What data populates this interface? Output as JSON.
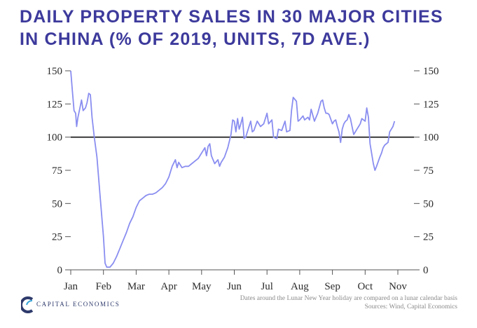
{
  "chart_data": {
    "type": "line",
    "title": "DAILY PROPERTY SALES IN 30 MAJOR CITIES IN CHINA (% OF 2019, UNITS, 7D AVE.)",
    "xlabel": "",
    "ylabel": "",
    "ylim": [
      0,
      150
    ],
    "yticks": [
      0,
      25,
      50,
      75,
      100,
      125,
      150
    ],
    "ytick_labels": [
      "0",
      "25",
      "50",
      "75",
      "100",
      "125",
      "150"
    ],
    "x_tick_labels": [
      "Jan",
      "Feb",
      "Mar",
      "Apr",
      "May",
      "Jun",
      "Jul",
      "Aug",
      "Sep",
      "Oct",
      "Nov"
    ],
    "reference_line": 100,
    "grid": false,
    "legend": "none",
    "series": [
      {
        "name": "Daily property sales (% of 2019)",
        "color": "#8a8ef0",
        "points": [
          [
            0.0,
            150
          ],
          [
            0.05,
            135
          ],
          [
            0.1,
            120
          ],
          [
            0.15,
            118
          ],
          [
            0.18,
            108
          ],
          [
            0.22,
            115
          ],
          [
            0.28,
            122
          ],
          [
            0.33,
            128
          ],
          [
            0.38,
            120
          ],
          [
            0.45,
            122
          ],
          [
            0.5,
            126
          ],
          [
            0.55,
            133
          ],
          [
            0.6,
            132
          ],
          [
            0.65,
            115
          ],
          [
            0.72,
            100
          ],
          [
            0.8,
            85
          ],
          [
            0.9,
            55
          ],
          [
            1.0,
            25
          ],
          [
            1.05,
            5
          ],
          [
            1.1,
            2
          ],
          [
            1.2,
            2
          ],
          [
            1.3,
            5
          ],
          [
            1.4,
            10
          ],
          [
            1.5,
            16
          ],
          [
            1.6,
            22
          ],
          [
            1.7,
            28
          ],
          [
            1.8,
            35
          ],
          [
            1.9,
            40
          ],
          [
            2.0,
            47
          ],
          [
            2.1,
            52
          ],
          [
            2.2,
            54
          ],
          [
            2.3,
            56
          ],
          [
            2.4,
            57
          ],
          [
            2.5,
            57
          ],
          [
            2.6,
            58
          ],
          [
            2.7,
            60
          ],
          [
            2.8,
            62
          ],
          [
            2.9,
            65
          ],
          [
            3.0,
            70
          ],
          [
            3.1,
            78
          ],
          [
            3.2,
            83
          ],
          [
            3.25,
            77
          ],
          [
            3.3,
            81
          ],
          [
            3.4,
            77
          ],
          [
            3.5,
            78
          ],
          [
            3.6,
            78
          ],
          [
            3.7,
            80
          ],
          [
            3.8,
            82
          ],
          [
            3.9,
            84
          ],
          [
            4.0,
            88
          ],
          [
            4.1,
            92
          ],
          [
            4.15,
            86
          ],
          [
            4.2,
            93
          ],
          [
            4.25,
            95
          ],
          [
            4.3,
            86
          ],
          [
            4.4,
            80
          ],
          [
            4.5,
            83
          ],
          [
            4.55,
            78
          ],
          [
            4.6,
            81
          ],
          [
            4.7,
            85
          ],
          [
            4.8,
            92
          ],
          [
            4.9,
            102
          ],
          [
            4.95,
            113
          ],
          [
            5.0,
            112
          ],
          [
            5.05,
            104
          ],
          [
            5.1,
            114
          ],
          [
            5.15,
            106
          ],
          [
            5.2,
            110
          ],
          [
            5.25,
            115
          ],
          [
            5.3,
            99
          ],
          [
            5.35,
            100
          ],
          [
            5.45,
            108
          ],
          [
            5.5,
            112
          ],
          [
            5.55,
            104
          ],
          [
            5.6,
            105
          ],
          [
            5.7,
            112
          ],
          [
            5.8,
            108
          ],
          [
            5.9,
            110
          ],
          [
            6.0,
            118
          ],
          [
            6.05,
            110
          ],
          [
            6.15,
            113
          ],
          [
            6.2,
            100
          ],
          [
            6.3,
            99
          ],
          [
            6.35,
            106
          ],
          [
            6.45,
            105
          ],
          [
            6.55,
            112
          ],
          [
            6.6,
            104
          ],
          [
            6.7,
            105
          ],
          [
            6.75,
            120
          ],
          [
            6.8,
            130
          ],
          [
            6.9,
            127
          ],
          [
            6.95,
            112
          ],
          [
            7.0,
            113
          ],
          [
            7.1,
            116
          ],
          [
            7.15,
            113
          ],
          [
            7.25,
            115
          ],
          [
            7.3,
            113
          ],
          [
            7.35,
            121
          ],
          [
            7.45,
            112
          ],
          [
            7.55,
            118
          ],
          [
            7.65,
            127
          ],
          [
            7.7,
            128
          ],
          [
            7.75,
            122
          ],
          [
            7.8,
            118
          ],
          [
            7.85,
            118
          ],
          [
            7.9,
            117
          ],
          [
            8.0,
            110
          ],
          [
            8.05,
            112
          ],
          [
            8.1,
            113
          ],
          [
            8.15,
            108
          ],
          [
            8.2,
            104
          ],
          [
            8.25,
            96
          ],
          [
            8.3,
            106
          ],
          [
            8.35,
            110
          ],
          [
            8.4,
            112
          ],
          [
            8.45,
            113
          ],
          [
            8.5,
            117
          ],
          [
            8.55,
            114
          ],
          [
            8.6,
            108
          ],
          [
            8.65,
            102
          ],
          [
            8.7,
            104
          ],
          [
            8.75,
            106
          ],
          [
            8.8,
            108
          ],
          [
            8.85,
            110
          ],
          [
            8.9,
            114
          ],
          [
            9.0,
            112
          ],
          [
            9.05,
            122
          ],
          [
            9.1,
            115
          ],
          [
            9.15,
            95
          ],
          [
            9.25,
            80
          ],
          [
            9.3,
            75
          ],
          [
            9.35,
            78
          ],
          [
            9.45,
            85
          ],
          [
            9.5,
            88
          ],
          [
            9.55,
            92
          ],
          [
            9.6,
            94
          ],
          [
            9.7,
            96
          ],
          [
            9.75,
            104
          ],
          [
            9.8,
            106
          ],
          [
            9.85,
            108
          ],
          [
            9.9,
            112
          ]
        ]
      }
    ]
  },
  "footer": {
    "logo_text": "CAPITAL ECONOMICS",
    "note_line1": "Dates around the Lunar New Year holiday are compared on a lunar calendar basis",
    "note_line2": "Sources: Wind, Capital Economics"
  }
}
